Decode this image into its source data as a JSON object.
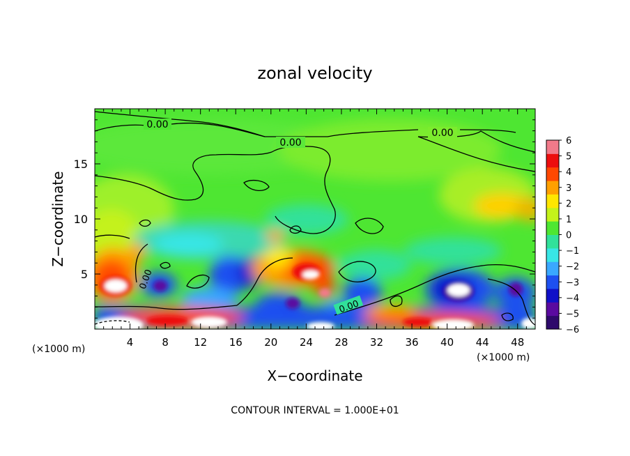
{
  "chart_data": {
    "type": "heatmap",
    "title": "zonal velocity",
    "xlabel": "X−coordinate",
    "ylabel": "Z−coordinate",
    "x_unit": "(×1000 m)",
    "y_unit": "(×1000 m)",
    "xlim": [
      0,
      50
    ],
    "ylim": [
      0,
      20
    ],
    "x_ticks": [
      4,
      8,
      12,
      16,
      20,
      24,
      28,
      32,
      36,
      40,
      44,
      48
    ],
    "x_tick_labels": [
      "4",
      "8",
      "12",
      "16",
      "20",
      "24",
      "28",
      "32",
      "36",
      "40",
      "44",
      "48"
    ],
    "y_ticks": [
      5,
      10,
      15
    ],
    "y_tick_labels": [
      "5",
      "10",
      "15"
    ],
    "colorbar": {
      "min": -6,
      "max": 6,
      "tick_labels": [
        "6",
        "5",
        "4",
        "3",
        "2",
        "1",
        "0",
        "−1",
        "−2",
        "−3",
        "−4",
        "−5",
        "−6"
      ],
      "colors": [
        "#2e0a6b",
        "#5a0aa0",
        "#1010c8",
        "#1e50f0",
        "#3aa8ff",
        "#38e6e6",
        "#31e19a",
        "#4ee632",
        "#c4f21a",
        "#ffe600",
        "#ffa000",
        "#ff4800",
        "#ec0e0e",
        "#f27a8a"
      ]
    },
    "contour_labels": [
      "0.00",
      "0.00",
      "0.00",
      "0.00",
      "0.00"
    ],
    "footnote": "CONTOUR INTERVAL = 1.000E+01"
  }
}
